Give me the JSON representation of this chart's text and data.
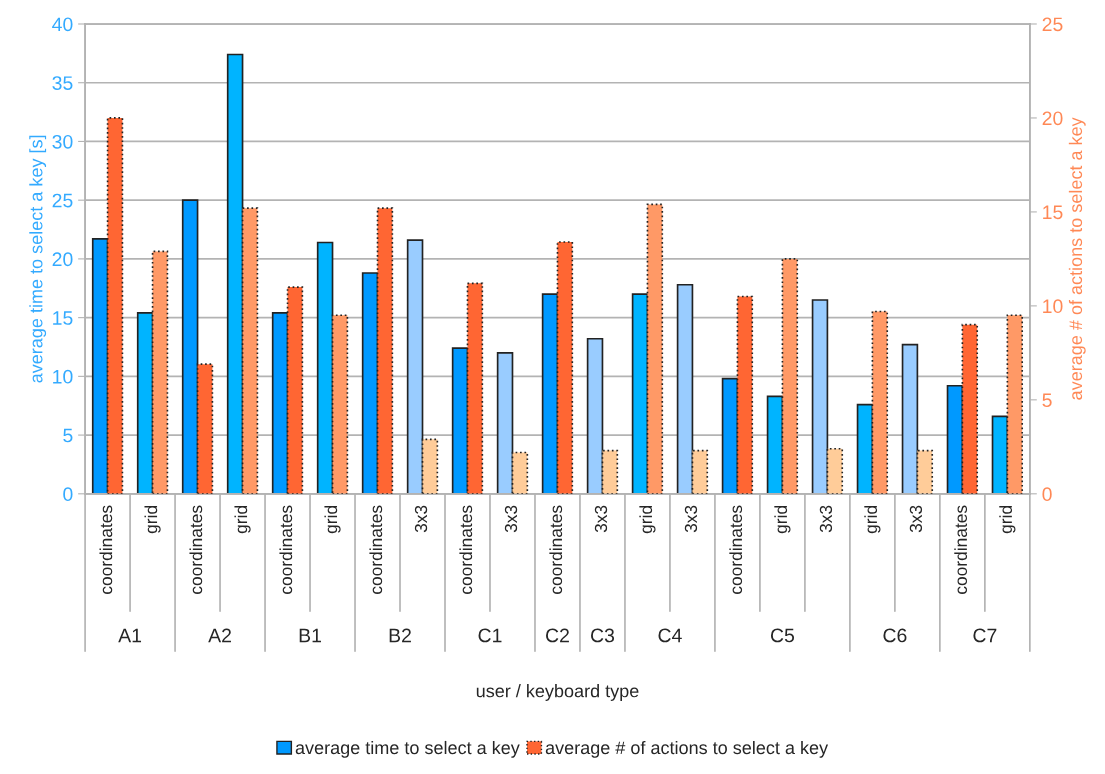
{
  "chart_data": {
    "type": "bar",
    "categories": [
      "coordinates",
      "grid",
      "coordinates",
      "grid",
      "coordinates",
      "grid",
      "coordinates",
      "3x3",
      "coordinates",
      "3x3",
      "coordinates",
      "3x3",
      "grid",
      "3x3",
      "coordinates",
      "grid",
      "3x3",
      "grid",
      "3x3",
      "coordinates",
      "grid"
    ],
    "annotations": [
      "A1",
      "A2",
      "B1",
      "B2",
      "C1",
      "C2",
      "C3",
      "C4",
      "C5",
      "C6",
      "C7"
    ],
    "xlabel": "user / keyboard type",
    "ylabel": "average time to select a key [s]",
    "y2label": "average # of actions to select a key",
    "ylim": [
      0,
      40
    ],
    "yticks": [
      0,
      5,
      10,
      15,
      20,
      25,
      30,
      35,
      40
    ],
    "y2lim": [
      0,
      25
    ],
    "y2ticks": [
      0,
      5,
      10,
      15,
      20,
      25
    ],
    "grid": "y",
    "legend": "bottom",
    "series": [
      {
        "name": "average time to select a key",
        "color": "#0099ff",
        "colors": [
          "#0099ff",
          "#00b4ff",
          "#0099ff",
          "#00b4ff",
          "#0099ff",
          "#00b4ff",
          "#0099ff",
          "#99ccff",
          "#0099ff",
          "#99ccff",
          "#0099ff",
          "#99ccff",
          "#00b4ff",
          "#99ccff",
          "#0099ff",
          "#00b4ff",
          "#99ccff",
          "#00b4ff",
          "#99ccff",
          "#0099ff",
          "#00b4ff"
        ],
        "values": [
          21.7,
          15.4,
          25.0,
          37.4,
          15.4,
          21.4,
          18.8,
          21.6,
          12.4,
          12.0,
          17.0,
          13.2,
          17.0,
          17.8,
          9.8,
          8.3,
          16.5,
          7.6,
          12.7,
          9.2,
          6.6
        ]
      },
      {
        "name": "average # of actions to select a key",
        "axis": "y2",
        "color": "#ff6633",
        "colors": [
          "#ff6633",
          "#ff9966",
          "#ff6633",
          "#ff9966",
          "#ff6633",
          "#ff9966",
          "#ff6633",
          "#ffcc99",
          "#ff6633",
          "#ffcc99",
          "#ff6633",
          "#ffcc99",
          "#ff9966",
          "#ffcc99",
          "#ff6633",
          "#ff9966",
          "#ffcc99",
          "#ff9966",
          "#ffcc99",
          "#ff6633",
          "#ff9966"
        ],
        "values": [
          20.0,
          12.9,
          6.9,
          15.2,
          11.0,
          9.5,
          15.2,
          2.9,
          11.2,
          2.2,
          13.4,
          2.3,
          15.4,
          2.3,
          10.5,
          12.5,
          2.4,
          9.7,
          2.3,
          9.0,
          9.5
        ]
      }
    ]
  }
}
